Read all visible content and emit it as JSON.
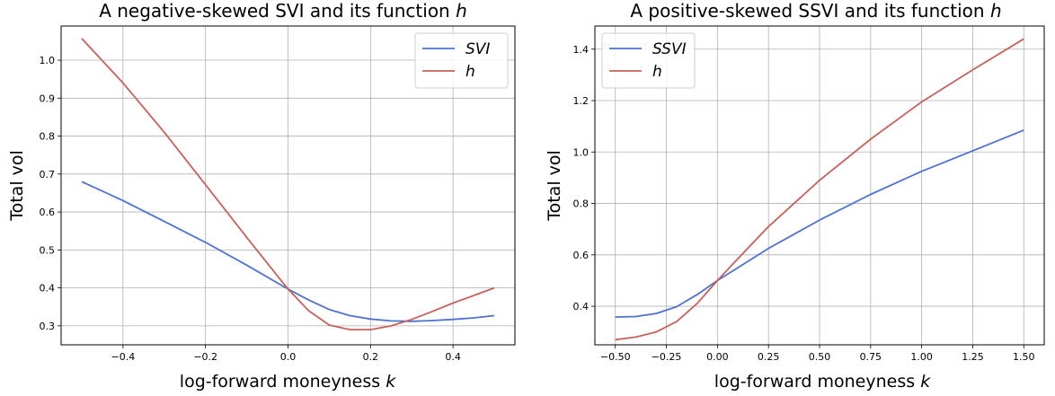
{
  "chart_data": [
    {
      "type": "line",
      "title": "A negative-skewed SVI and its function",
      "title_symbol": "h",
      "xlabel": "log-forward moneyness",
      "xlabel_symbol": "k",
      "ylabel": "Total vol",
      "xlim": [
        -0.55,
        0.55
      ],
      "ylim": [
        0.25,
        1.09
      ],
      "xticks": [
        -0.4,
        -0.2,
        0.0,
        0.2,
        0.4
      ],
      "xtick_labels": [
        "−0.4",
        "−0.2",
        "0.0",
        "0.2",
        "0.4"
      ],
      "yticks": [
        0.3,
        0.4,
        0.5,
        0.6,
        0.7,
        0.8,
        0.9,
        1.0
      ],
      "ytick_labels": [
        "0.3",
        "0.4",
        "0.5",
        "0.6",
        "0.7",
        "0.8",
        "0.9",
        "1.0"
      ],
      "grid": true,
      "legend": "upper right",
      "series": [
        {
          "name": "SVI",
          "color": "#4c72d4",
          "x": [
            -0.5,
            -0.4,
            -0.3,
            -0.2,
            -0.1,
            0.0,
            0.05,
            0.1,
            0.15,
            0.2,
            0.25,
            0.3,
            0.35,
            0.4,
            0.45,
            0.5
          ],
          "y": [
            0.68,
            0.63,
            0.575,
            0.52,
            0.46,
            0.397,
            0.368,
            0.343,
            0.327,
            0.318,
            0.313,
            0.312,
            0.314,
            0.317,
            0.321,
            0.327
          ]
        },
        {
          "name": "h",
          "color": "#c9605a",
          "x": [
            -0.5,
            -0.4,
            -0.3,
            -0.2,
            -0.1,
            0.0,
            0.05,
            0.1,
            0.15,
            0.2,
            0.25,
            0.3,
            0.35,
            0.4,
            0.45,
            0.5
          ],
          "y": [
            1.057,
            0.94,
            0.81,
            0.672,
            0.533,
            0.397,
            0.34,
            0.302,
            0.29,
            0.29,
            0.3,
            0.317,
            0.338,
            0.36,
            0.38,
            0.4
          ]
        }
      ]
    },
    {
      "type": "line",
      "title": "A positive-skewed SSVI and its function",
      "title_symbol": "h",
      "xlabel": "log-forward moneyness",
      "xlabel_symbol": "k",
      "ylabel": "Total vol",
      "xlim": [
        -0.6,
        1.6
      ],
      "ylim": [
        0.25,
        1.49
      ],
      "xticks": [
        -0.5,
        -0.25,
        0.0,
        0.25,
        0.5,
        0.75,
        1.0,
        1.25,
        1.5
      ],
      "xtick_labels": [
        "−0.50",
        "−0.25",
        "0.00",
        "0.25",
        "0.50",
        "0.75",
        "1.00",
        "1.25",
        "1.50"
      ],
      "yticks": [
        0.4,
        0.6,
        0.8,
        1.0,
        1.2,
        1.4
      ],
      "ytick_labels": [
        "0.4",
        "0.6",
        "0.8",
        "1.0",
        "1.2",
        "1.4"
      ],
      "grid": true,
      "legend": "upper left",
      "series": [
        {
          "name": "SSVI",
          "color": "#4c72d4",
          "x": [
            -0.5,
            -0.4,
            -0.3,
            -0.2,
            -0.1,
            0.0,
            0.1,
            0.25,
            0.5,
            0.75,
            1.0,
            1.25,
            1.5
          ],
          "y": [
            0.358,
            0.36,
            0.372,
            0.398,
            0.445,
            0.5,
            0.55,
            0.625,
            0.735,
            0.835,
            0.925,
            1.005,
            1.085
          ]
        },
        {
          "name": "h",
          "color": "#c9605a",
          "x": [
            -0.5,
            -0.4,
            -0.3,
            -0.2,
            -0.1,
            0.0,
            0.1,
            0.25,
            0.5,
            0.75,
            1.0,
            1.25,
            1.5
          ],
          "y": [
            0.27,
            0.28,
            0.3,
            0.34,
            0.41,
            0.5,
            0.585,
            0.71,
            0.89,
            1.05,
            1.195,
            1.32,
            1.44
          ]
        }
      ]
    }
  ]
}
